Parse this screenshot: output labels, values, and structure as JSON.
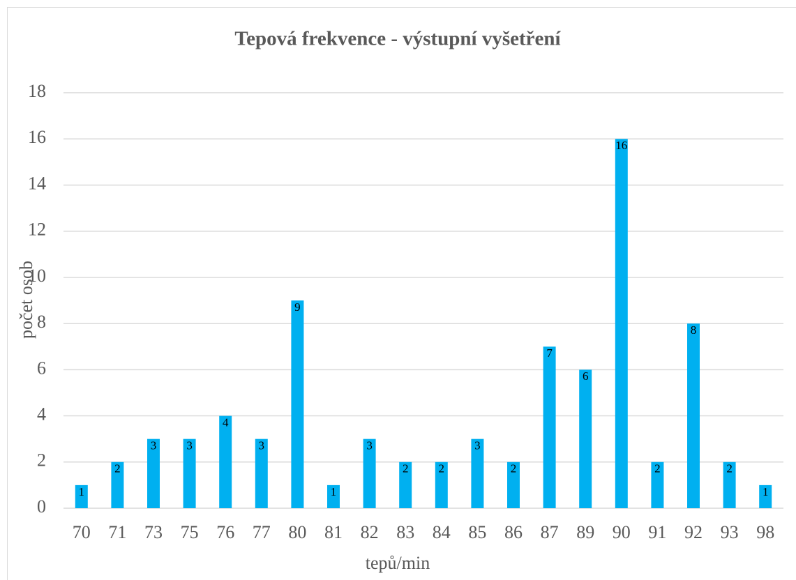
{
  "chart_data": {
    "type": "bar",
    "title": "Tepová frekvence - výstupní vyšetření",
    "x_label": "tepů/min",
    "y_label": "počet osob",
    "categories": [
      "70",
      "71",
      "73",
      "75",
      "76",
      "77",
      "80",
      "81",
      "82",
      "83",
      "84",
      "85",
      "86",
      "87",
      "89",
      "90",
      "91",
      "92",
      "93",
      "98"
    ],
    "values": [
      1,
      2,
      3,
      3,
      4,
      3,
      9,
      1,
      3,
      2,
      2,
      3,
      2,
      7,
      6,
      16,
      2,
      8,
      2,
      1
    ],
    "color": "#00b0f0",
    "ylim": [
      0,
      18
    ],
    "yticks": [
      0,
      2,
      4,
      6,
      8,
      10,
      12,
      14,
      16,
      18
    ],
    "grid": true
  }
}
